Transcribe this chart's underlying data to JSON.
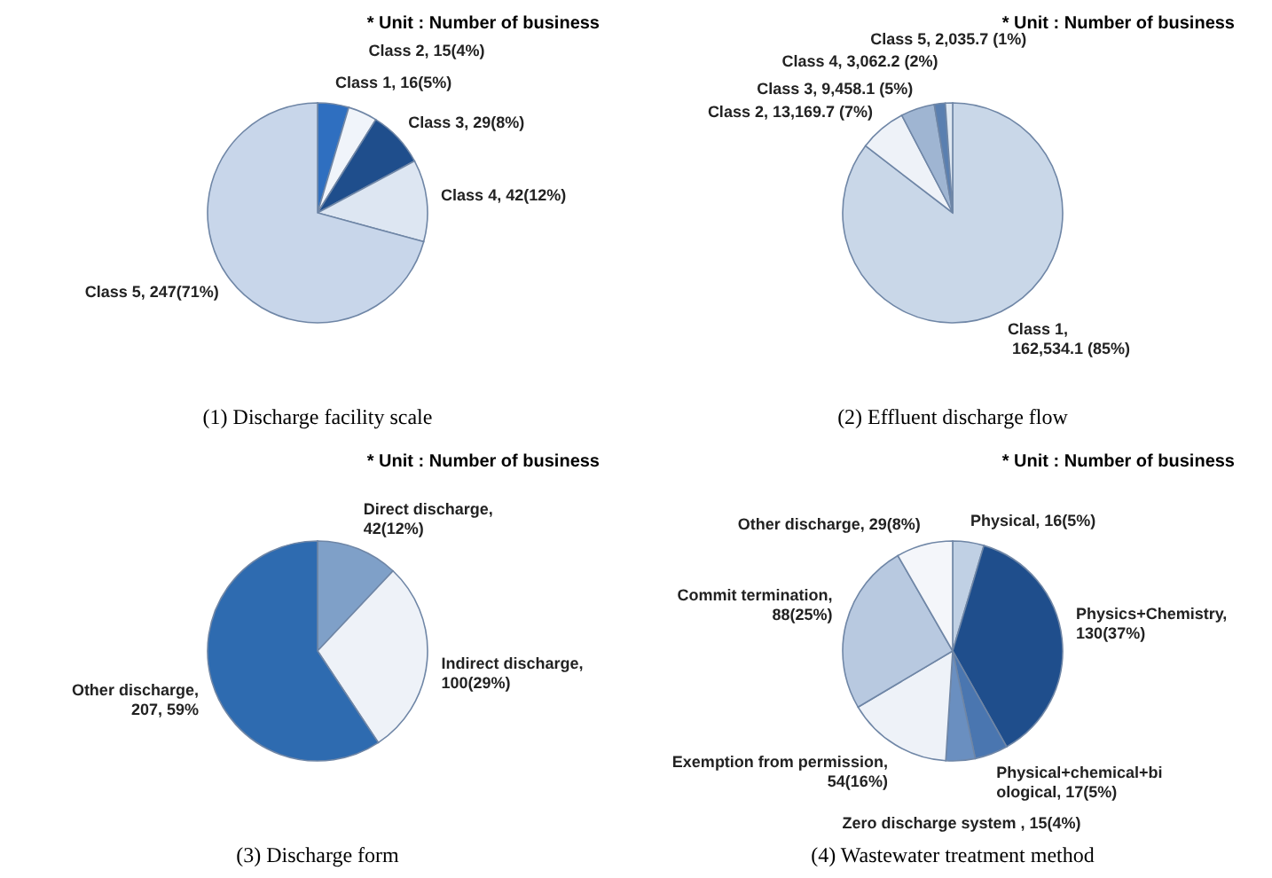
{
  "chart_data": [
    {
      "type": "pie",
      "title": "(1)  Discharge  facility  scale",
      "annotations": [
        "* Unit : Number of business"
      ],
      "categories": [
        "Class 1, 16(5%)",
        "Class 2, 15(4%)",
        "Class 3, 29(8%)",
        "Class 4, 42(12%)",
        "Class 5, 247(71%)"
      ],
      "values": [
        16,
        15,
        29,
        42,
        247
      ],
      "colors": [
        "#2f6fc0",
        "#f0f4fa",
        "#1f4e8c",
        "#dde6f2",
        "#c8d6ea"
      ]
    },
    {
      "type": "pie",
      "title": "(2)  Effluent  discharge  flow",
      "annotations": [
        "* Unit : Number of business"
      ],
      "categories": [
        "Class 1,  162,534.1 (85%)",
        "Class 2,  13,169.7 (7%)",
        "Class 3,  9,458.1 (5%)",
        "Class 4,  3,062.2 (2%)",
        "Class 5,  2,035.7 (1%)"
      ],
      "values": [
        162534.1,
        13169.7,
        9458.1,
        3062.2,
        2035.7
      ],
      "colors": [
        "#c9d7e8",
        "#eef2f8",
        "#9fb5d2",
        "#5a7fb0",
        "#dfe8f2"
      ]
    },
    {
      "type": "pie",
      "title": "(3)  Discharge  form",
      "annotations": [
        "* Unit : Number of business"
      ],
      "categories": [
        "Direct discharge, 42(12%)",
        "Indirect discharge, 100(29%)",
        "Other discharge, 207, 59%"
      ],
      "values": [
        42,
        100,
        207
      ],
      "colors": [
        "#7fa0c8",
        "#eef2f8",
        "#2e6bb0"
      ]
    },
    {
      "type": "pie",
      "title": "(4)  Wastewater  treatment  method",
      "annotations": [
        "* Unit : Number of business"
      ],
      "categories": [
        "Physical, 16(5%)",
        "Physics+Chemistry, 130(37%)",
        "Physical+chemical+biological, 17(5%)",
        "Zero discharge system , 15(4%)",
        "Exemption from permission, 54(16%)",
        "Commit termination, 88(25%)",
        "Other discharge, 29(8%)"
      ],
      "values": [
        16,
        130,
        17,
        15,
        54,
        88,
        29
      ],
      "colors": [
        "#c0d0e4",
        "#1f4e8c",
        "#4a76b0",
        "#6a8fc0",
        "#eef2f8",
        "#b8c9e0",
        "#f4f6fa"
      ]
    }
  ]
}
